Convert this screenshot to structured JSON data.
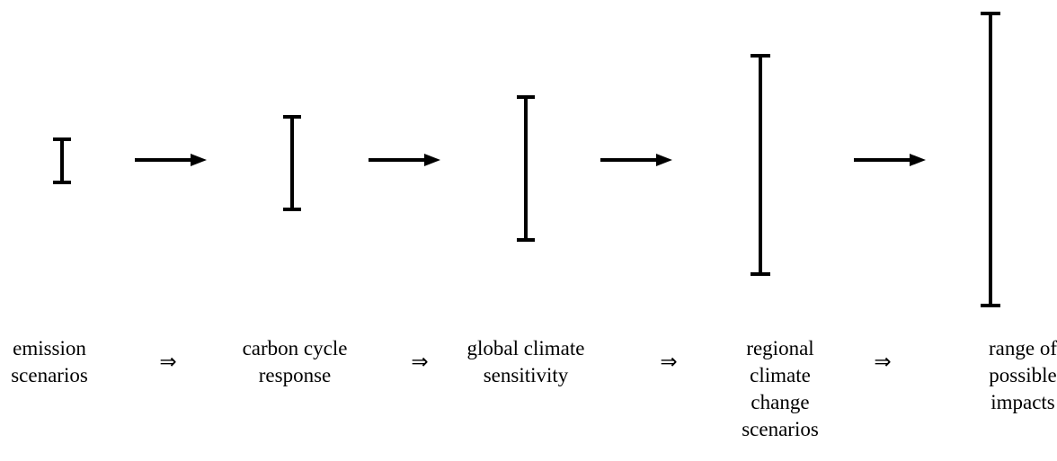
{
  "stages": [
    {
      "lines": [
        "emission",
        "scenarios"
      ]
    },
    {
      "lines": [
        "carbon cycle",
        "response"
      ]
    },
    {
      "lines": [
        "global climate",
        "sensitivity"
      ]
    },
    {
      "lines": [
        "regional",
        "climate",
        "change",
        "scenarios"
      ]
    },
    {
      "lines": [
        "range of",
        "possible",
        "impacts"
      ]
    }
  ],
  "connectors": [
    "⇒",
    "⇒",
    "⇒",
    "⇒"
  ]
}
